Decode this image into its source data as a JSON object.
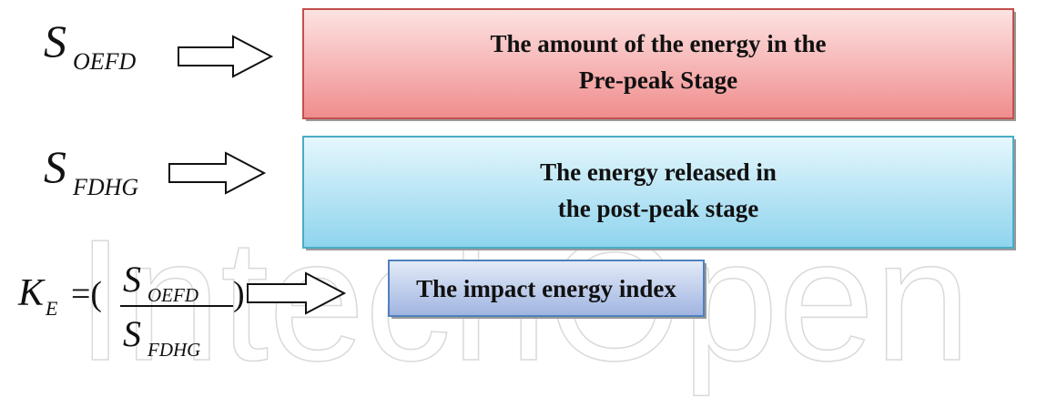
{
  "watermark": "IntechOpen",
  "rows": [
    {
      "symbol": {
        "base": "S",
        "sub": "OEFD"
      },
      "label_lines": [
        "The amount of the energy in the",
        "Pre-peak Stage"
      ]
    },
    {
      "symbol": {
        "base": "S",
        "sub": "FDHG"
      },
      "label_lines": [
        "The energy released in",
        "the post-peak stage"
      ]
    }
  ],
  "formula": {
    "base": "K",
    "sub": "E",
    "open": "=(",
    "numerator": {
      "base": "S",
      "sub": "OEFD"
    },
    "denominator": {
      "base": "S",
      "sub": "FDHG"
    },
    "close": ")",
    "label": "The impact energy index"
  }
}
